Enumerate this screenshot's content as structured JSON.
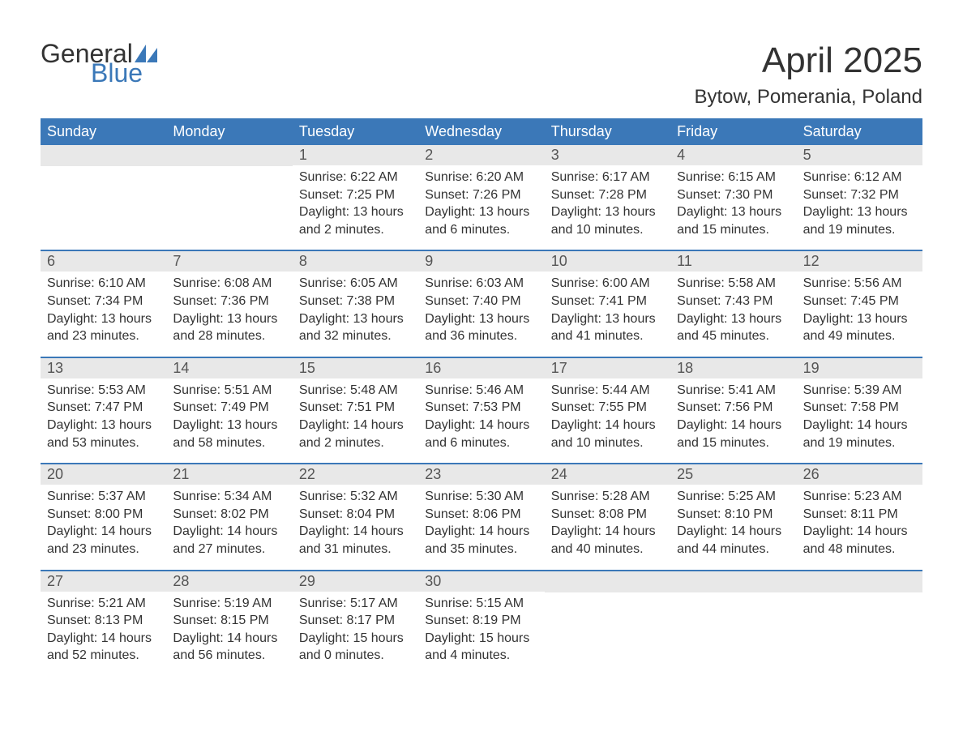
{
  "logo": {
    "text_general": "General",
    "text_blue": "Blue",
    "sail_color": "#3b78b8"
  },
  "title": "April 2025",
  "location": "Bytow, Pomerania, Poland",
  "header_bg": "#3b78b8",
  "header_fg": "#ffffff",
  "daynum_bg": "#e8e8e8",
  "week_border": "#3b78b8",
  "text_color": "#333333",
  "weekdays": [
    "Sunday",
    "Monday",
    "Tuesday",
    "Wednesday",
    "Thursday",
    "Friday",
    "Saturday"
  ],
  "weeks": [
    [
      {
        "num": "",
        "sunrise": "",
        "sunset": "",
        "daylight": ""
      },
      {
        "num": "",
        "sunrise": "",
        "sunset": "",
        "daylight": ""
      },
      {
        "num": "1",
        "sunrise": "Sunrise: 6:22 AM",
        "sunset": "Sunset: 7:25 PM",
        "daylight": "Daylight: 13 hours and 2 minutes."
      },
      {
        "num": "2",
        "sunrise": "Sunrise: 6:20 AM",
        "sunset": "Sunset: 7:26 PM",
        "daylight": "Daylight: 13 hours and 6 minutes."
      },
      {
        "num": "3",
        "sunrise": "Sunrise: 6:17 AM",
        "sunset": "Sunset: 7:28 PM",
        "daylight": "Daylight: 13 hours and 10 minutes."
      },
      {
        "num": "4",
        "sunrise": "Sunrise: 6:15 AM",
        "sunset": "Sunset: 7:30 PM",
        "daylight": "Daylight: 13 hours and 15 minutes."
      },
      {
        "num": "5",
        "sunrise": "Sunrise: 6:12 AM",
        "sunset": "Sunset: 7:32 PM",
        "daylight": "Daylight: 13 hours and 19 minutes."
      }
    ],
    [
      {
        "num": "6",
        "sunrise": "Sunrise: 6:10 AM",
        "sunset": "Sunset: 7:34 PM",
        "daylight": "Daylight: 13 hours and 23 minutes."
      },
      {
        "num": "7",
        "sunrise": "Sunrise: 6:08 AM",
        "sunset": "Sunset: 7:36 PM",
        "daylight": "Daylight: 13 hours and 28 minutes."
      },
      {
        "num": "8",
        "sunrise": "Sunrise: 6:05 AM",
        "sunset": "Sunset: 7:38 PM",
        "daylight": "Daylight: 13 hours and 32 minutes."
      },
      {
        "num": "9",
        "sunrise": "Sunrise: 6:03 AM",
        "sunset": "Sunset: 7:40 PM",
        "daylight": "Daylight: 13 hours and 36 minutes."
      },
      {
        "num": "10",
        "sunrise": "Sunrise: 6:00 AM",
        "sunset": "Sunset: 7:41 PM",
        "daylight": "Daylight: 13 hours and 41 minutes."
      },
      {
        "num": "11",
        "sunrise": "Sunrise: 5:58 AM",
        "sunset": "Sunset: 7:43 PM",
        "daylight": "Daylight: 13 hours and 45 minutes."
      },
      {
        "num": "12",
        "sunrise": "Sunrise: 5:56 AM",
        "sunset": "Sunset: 7:45 PM",
        "daylight": "Daylight: 13 hours and 49 minutes."
      }
    ],
    [
      {
        "num": "13",
        "sunrise": "Sunrise: 5:53 AM",
        "sunset": "Sunset: 7:47 PM",
        "daylight": "Daylight: 13 hours and 53 minutes."
      },
      {
        "num": "14",
        "sunrise": "Sunrise: 5:51 AM",
        "sunset": "Sunset: 7:49 PM",
        "daylight": "Daylight: 13 hours and 58 minutes."
      },
      {
        "num": "15",
        "sunrise": "Sunrise: 5:48 AM",
        "sunset": "Sunset: 7:51 PM",
        "daylight": "Daylight: 14 hours and 2 minutes."
      },
      {
        "num": "16",
        "sunrise": "Sunrise: 5:46 AM",
        "sunset": "Sunset: 7:53 PM",
        "daylight": "Daylight: 14 hours and 6 minutes."
      },
      {
        "num": "17",
        "sunrise": "Sunrise: 5:44 AM",
        "sunset": "Sunset: 7:55 PM",
        "daylight": "Daylight: 14 hours and 10 minutes."
      },
      {
        "num": "18",
        "sunrise": "Sunrise: 5:41 AM",
        "sunset": "Sunset: 7:56 PM",
        "daylight": "Daylight: 14 hours and 15 minutes."
      },
      {
        "num": "19",
        "sunrise": "Sunrise: 5:39 AM",
        "sunset": "Sunset: 7:58 PM",
        "daylight": "Daylight: 14 hours and 19 minutes."
      }
    ],
    [
      {
        "num": "20",
        "sunrise": "Sunrise: 5:37 AM",
        "sunset": "Sunset: 8:00 PM",
        "daylight": "Daylight: 14 hours and 23 minutes."
      },
      {
        "num": "21",
        "sunrise": "Sunrise: 5:34 AM",
        "sunset": "Sunset: 8:02 PM",
        "daylight": "Daylight: 14 hours and 27 minutes."
      },
      {
        "num": "22",
        "sunrise": "Sunrise: 5:32 AM",
        "sunset": "Sunset: 8:04 PM",
        "daylight": "Daylight: 14 hours and 31 minutes."
      },
      {
        "num": "23",
        "sunrise": "Sunrise: 5:30 AM",
        "sunset": "Sunset: 8:06 PM",
        "daylight": "Daylight: 14 hours and 35 minutes."
      },
      {
        "num": "24",
        "sunrise": "Sunrise: 5:28 AM",
        "sunset": "Sunset: 8:08 PM",
        "daylight": "Daylight: 14 hours and 40 minutes."
      },
      {
        "num": "25",
        "sunrise": "Sunrise: 5:25 AM",
        "sunset": "Sunset: 8:10 PM",
        "daylight": "Daylight: 14 hours and 44 minutes."
      },
      {
        "num": "26",
        "sunrise": "Sunrise: 5:23 AM",
        "sunset": "Sunset: 8:11 PM",
        "daylight": "Daylight: 14 hours and 48 minutes."
      }
    ],
    [
      {
        "num": "27",
        "sunrise": "Sunrise: 5:21 AM",
        "sunset": "Sunset: 8:13 PM",
        "daylight": "Daylight: 14 hours and 52 minutes."
      },
      {
        "num": "28",
        "sunrise": "Sunrise: 5:19 AM",
        "sunset": "Sunset: 8:15 PM",
        "daylight": "Daylight: 14 hours and 56 minutes."
      },
      {
        "num": "29",
        "sunrise": "Sunrise: 5:17 AM",
        "sunset": "Sunset: 8:17 PM",
        "daylight": "Daylight: 15 hours and 0 minutes."
      },
      {
        "num": "30",
        "sunrise": "Sunrise: 5:15 AM",
        "sunset": "Sunset: 8:19 PM",
        "daylight": "Daylight: 15 hours and 4 minutes."
      },
      {
        "num": "",
        "sunrise": "",
        "sunset": "",
        "daylight": ""
      },
      {
        "num": "",
        "sunrise": "",
        "sunset": "",
        "daylight": ""
      },
      {
        "num": "",
        "sunrise": "",
        "sunset": "",
        "daylight": ""
      }
    ]
  ]
}
